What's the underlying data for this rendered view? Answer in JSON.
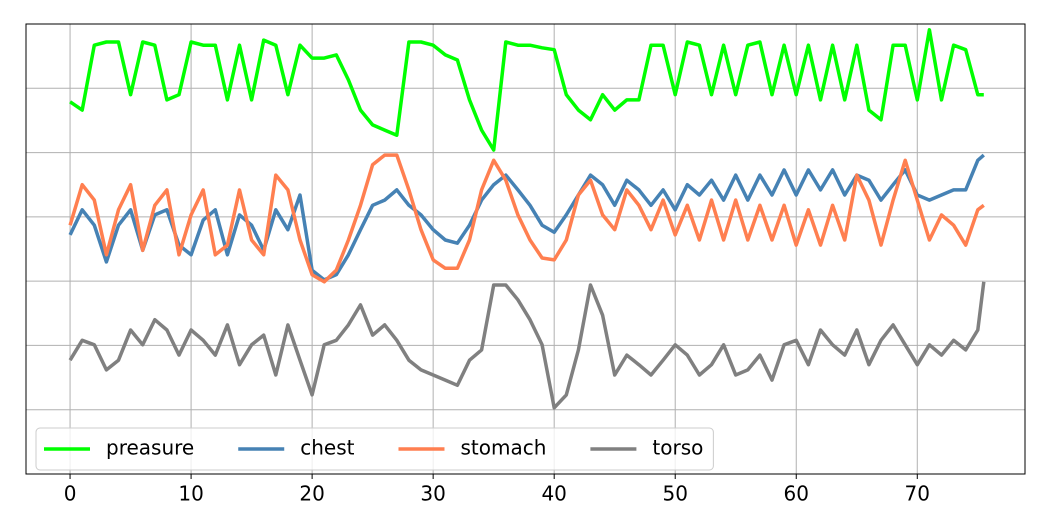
{
  "chart_data": {
    "type": "line",
    "x": [
      0,
      1,
      2,
      3,
      4,
      5,
      6,
      7,
      8,
      9,
      10,
      11,
      12,
      13,
      14,
      15,
      16,
      17,
      18,
      19,
      20,
      21,
      22,
      23,
      24,
      25,
      26,
      27,
      28,
      29,
      30,
      31,
      32,
      33,
      34,
      35,
      36,
      37,
      38,
      39,
      40,
      41,
      42,
      43,
      44,
      45,
      46,
      47,
      48,
      49,
      50,
      51,
      52,
      53,
      54,
      55,
      56,
      57,
      58,
      59,
      60,
      61,
      62,
      63,
      64,
      65,
      66,
      67,
      68,
      69,
      70,
      71,
      72,
      73,
      74,
      75,
      75.5
    ],
    "series": [
      {
        "name": "preasure",
        "color": "#00ff00",
        "values": [
          5.79,
          5.66,
          6.67,
          6.72,
          6.72,
          5.9,
          6.72,
          6.67,
          5.82,
          5.9,
          6.72,
          6.67,
          6.67,
          5.82,
          6.67,
          5.82,
          6.75,
          6.67,
          5.9,
          6.67,
          6.47,
          6.47,
          6.52,
          6.13,
          5.66,
          5.43,
          5.35,
          5.27,
          6.72,
          6.72,
          6.67,
          6.52,
          6.44,
          5.82,
          5.35,
          5.04,
          6.72,
          6.67,
          6.67,
          6.63,
          6.6,
          5.9,
          5.66,
          5.51,
          5.9,
          5.66,
          5.82,
          5.82,
          6.67,
          6.67,
          5.9,
          6.72,
          6.67,
          5.9,
          6.67,
          5.9,
          6.67,
          6.72,
          5.9,
          6.67,
          5.9,
          6.67,
          5.82,
          6.67,
          5.82,
          6.67,
          5.66,
          5.51,
          6.67,
          6.67,
          5.82,
          6.91,
          5.82,
          6.67,
          6.6,
          5.9,
          5.9
        ]
      },
      {
        "name": "chest",
        "color": "#4682b4",
        "values": [
          3.72,
          4.11,
          3.87,
          3.3,
          3.87,
          4.11,
          3.48,
          4.03,
          4.11,
          3.56,
          3.41,
          3.95,
          4.11,
          3.41,
          4.03,
          3.87,
          3.48,
          4.11,
          3.8,
          4.34,
          3.17,
          3.02,
          3.1,
          3.41,
          3.8,
          4.18,
          4.26,
          4.42,
          4.18,
          4.03,
          3.8,
          3.64,
          3.59,
          3.87,
          4.26,
          4.5,
          4.65,
          4.42,
          4.18,
          3.87,
          3.76,
          4.03,
          4.34,
          4.65,
          4.5,
          4.18,
          4.57,
          4.42,
          4.18,
          4.42,
          4.11,
          4.5,
          4.34,
          4.57,
          4.26,
          4.65,
          4.26,
          4.65,
          4.34,
          4.73,
          4.34,
          4.73,
          4.42,
          4.73,
          4.34,
          4.65,
          4.57,
          4.26,
          4.5,
          4.73,
          4.34,
          4.26,
          4.34,
          4.42,
          4.42,
          4.88,
          4.96
        ]
      },
      {
        "name": "stomach",
        "color": "#ff7f50",
        "values": [
          3.87,
          4.5,
          4.26,
          3.41,
          4.11,
          4.5,
          3.48,
          4.18,
          4.42,
          3.41,
          4.03,
          4.42,
          3.41,
          3.56,
          4.42,
          3.64,
          3.41,
          4.65,
          4.42,
          3.64,
          3.1,
          2.99,
          3.17,
          3.64,
          4.18,
          4.81,
          4.96,
          4.96,
          4.42,
          3.8,
          3.33,
          3.2,
          3.2,
          3.64,
          4.42,
          4.88,
          4.57,
          4.03,
          3.64,
          3.36,
          3.33,
          3.64,
          4.34,
          4.57,
          4.03,
          3.8,
          4.42,
          4.18,
          3.8,
          4.26,
          3.72,
          4.18,
          3.64,
          4.26,
          3.64,
          4.26,
          3.64,
          4.18,
          3.64,
          4.18,
          3.56,
          4.11,
          3.56,
          4.18,
          3.64,
          4.65,
          4.26,
          3.56,
          4.26,
          4.88,
          4.26,
          3.64,
          4.03,
          3.87,
          3.56,
          4.11,
          4.18
        ]
      },
      {
        "name": "torso",
        "color": "#808080",
        "values": [
          1.77,
          2.08,
          2.01,
          1.62,
          1.77,
          2.24,
          2.01,
          2.4,
          2.24,
          1.85,
          2.24,
          2.08,
          1.85,
          2.32,
          1.7,
          2.01,
          2.16,
          1.54,
          2.32,
          1.77,
          1.23,
          2.01,
          2.08,
          2.32,
          2.63,
          2.16,
          2.32,
          2.08,
          1.77,
          1.62,
          1.54,
          1.46,
          1.38,
          1.77,
          1.93,
          2.94,
          2.94,
          2.71,
          2.4,
          2.01,
          1.03,
          1.23,
          1.93,
          2.94,
          2.47,
          1.54,
          1.85,
          1.7,
          1.54,
          1.77,
          2.01,
          1.85,
          1.54,
          1.7,
          2.01,
          1.54,
          1.62,
          1.85,
          1.46,
          2.01,
          2.08,
          1.7,
          2.24,
          2.01,
          1.85,
          2.24,
          1.7,
          2.08,
          2.32,
          2.01,
          1.7,
          2.01,
          1.85,
          2.08,
          1.93,
          2.24,
          2.99
        ]
      }
    ],
    "xlim": [
      -3.64,
      78.9
    ],
    "xticks": [
      0,
      10,
      20,
      30,
      40,
      50,
      60,
      70
    ],
    "ylim": [
      0,
      7
    ],
    "ygrid": [
      1,
      2,
      3,
      4,
      5,
      6
    ],
    "grid": true,
    "legend": "lower left"
  }
}
